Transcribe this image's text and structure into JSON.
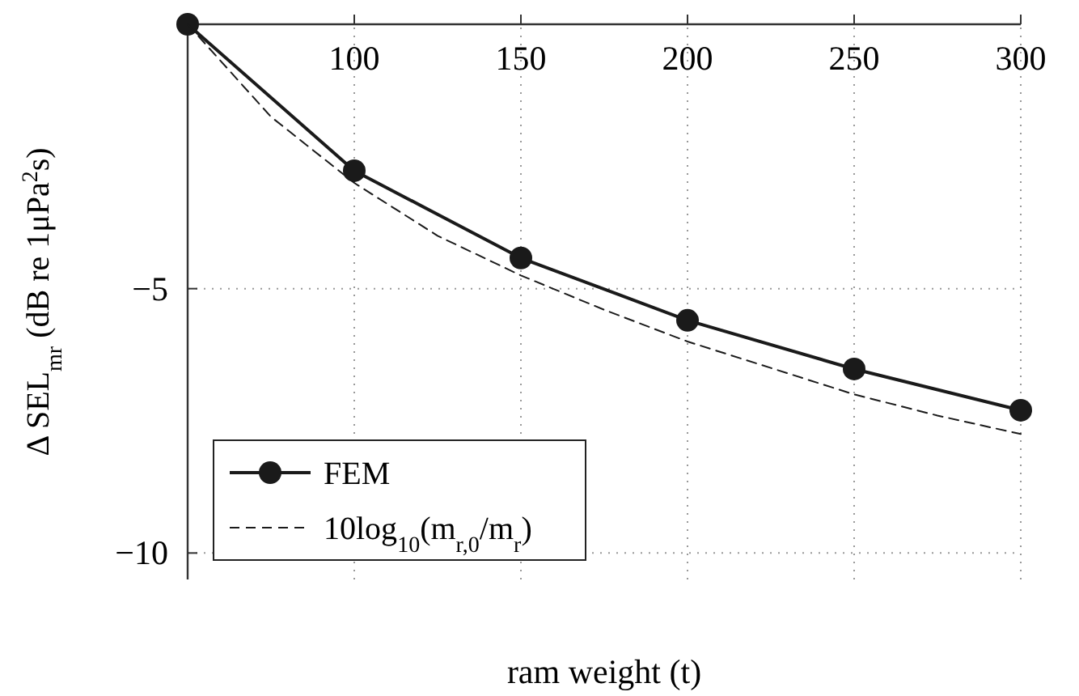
{
  "chart_data": {
    "type": "line",
    "xlabel": "ram weight (t)",
    "ylabel": "Δ SEL$_{mr}$ (dB re 1μPa$^{2}$s)",
    "xlim": [
      50,
      300
    ],
    "xticks": [
      {
        "value": 50,
        "label": null
      },
      100,
      150,
      200,
      250,
      300
    ],
    "ylim": [
      -10.5,
      0
    ],
    "yticks": [
      {
        "value": 0,
        "label": null
      },
      {
        "value": -5,
        "label": "−5"
      },
      {
        "value": -10,
        "label": "−10"
      }
    ],
    "grid": true,
    "legend": "bottom left",
    "series": [
      {
        "name": "FEM",
        "color": "#1a1a1a",
        "marker": "circle",
        "line_style": "solid",
        "x": [
          50,
          100,
          150,
          200,
          250,
          300
        ],
        "values": [
          0,
          -2.77,
          -4.42,
          -5.6,
          -6.52,
          -7.3
        ]
      },
      {
        "name": "10log$_{10}$(m$_{r,0}$/m$_{r}$)",
        "color": "#1a1a1a",
        "marker": "none",
        "line_style": "dashed",
        "x": [
          50,
          75,
          100,
          125,
          150,
          175,
          200,
          225,
          250,
          275,
          300
        ],
        "values": [
          0,
          -1.75,
          -3.0,
          -4.0,
          -4.75,
          -5.4,
          -6.0,
          -6.5,
          -7.0,
          -7.4,
          -7.75
        ]
      }
    ]
  }
}
